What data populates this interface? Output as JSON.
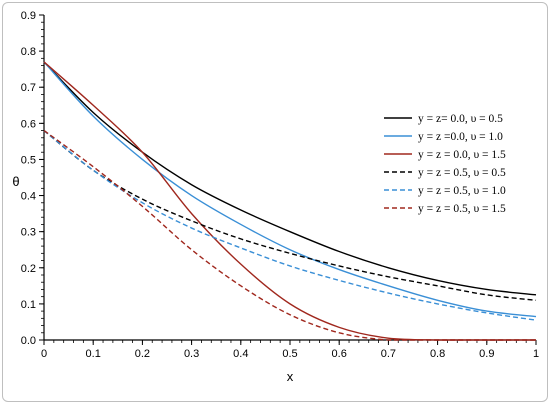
{
  "chart_data": {
    "type": "line",
    "xlabel": "x",
    "ylabel": "θ",
    "xlim": [
      0,
      1
    ],
    "ylim": [
      0,
      0.9
    ],
    "x_ticks": [
      "0",
      "0.1",
      "0.2",
      "0.3",
      "0.4",
      "0.5",
      "0.6",
      "0.7",
      "0.8",
      "0.9",
      "1"
    ],
    "y_ticks": [
      "0.0",
      "0.1",
      "0.2",
      "0.3",
      "0.4",
      "0.5",
      "0.6",
      "0.7",
      "0.8",
      "0.9"
    ],
    "grid": false,
    "legend_position": "right",
    "x": [
      0,
      0.1,
      0.2,
      0.3,
      0.4,
      0.5,
      0.6,
      0.7,
      0.8,
      0.9,
      1.0
    ],
    "series": [
      {
        "name": "y = z= 0.0,  υ = 0.5",
        "color": "#000000",
        "dash": "solid",
        "values": [
          0.77,
          0.63,
          0.52,
          0.43,
          0.36,
          0.3,
          0.245,
          0.2,
          0.165,
          0.14,
          0.125
        ]
      },
      {
        "name": "y = z =0.0,  υ = 1.0",
        "color": "#3a8fd6",
        "dash": "solid",
        "values": [
          0.77,
          0.62,
          0.5,
          0.4,
          0.32,
          0.25,
          0.195,
          0.15,
          0.11,
          0.08,
          0.065
        ]
      },
      {
        "name": "y = z = 0.0,  υ = 1.5",
        "color": "#a0281e",
        "dash": "solid",
        "values": [
          0.77,
          0.65,
          0.52,
          0.35,
          0.21,
          0.1,
          0.035,
          0.005,
          0.0,
          0.0,
          0.0
        ]
      },
      {
        "name": "y = z = 0.5,  υ = 0.5",
        "color": "#000000",
        "dash": "dashed",
        "values": [
          0.58,
          0.47,
          0.39,
          0.33,
          0.28,
          0.24,
          0.205,
          0.175,
          0.15,
          0.125,
          0.11
        ]
      },
      {
        "name": "y = z = 0.5,  υ = 1.0",
        "color": "#3a8fd6",
        "dash": "dashed",
        "values": [
          0.58,
          0.47,
          0.38,
          0.31,
          0.255,
          0.205,
          0.165,
          0.13,
          0.1,
          0.075,
          0.055
        ]
      },
      {
        "name": "y = z = 0.5,  υ = 1.5",
        "color": "#a0281e",
        "dash": "dashed",
        "values": [
          0.58,
          0.48,
          0.37,
          0.25,
          0.15,
          0.07,
          0.02,
          0.0,
          0.0,
          0.0,
          0.0
        ]
      }
    ]
  }
}
